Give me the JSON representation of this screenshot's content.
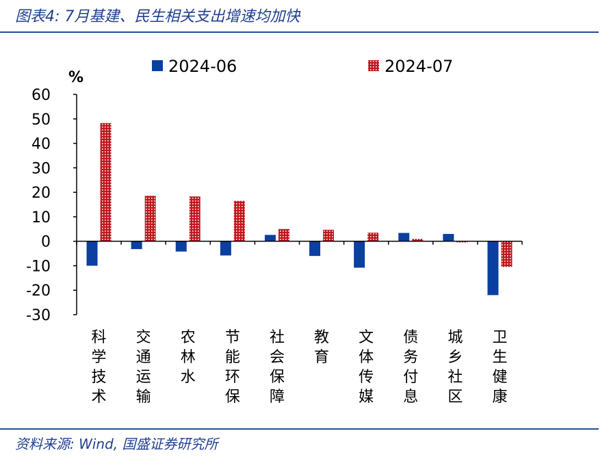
{
  "title": "图表4: 7月基建、民生相关支出增速均加快",
  "source": "资料来源: Wind, 国盛证券研究所",
  "chart_data": {
    "type": "bar",
    "ylabel": "%",
    "ylim": [
      -30,
      60
    ],
    "yticks": [
      60,
      50,
      40,
      30,
      20,
      10,
      0,
      -10,
      -20,
      -30
    ],
    "legend_position": "top",
    "categories": [
      "科学技术",
      "交通运输",
      "农林水",
      "节能环保",
      "社会保障",
      "教育",
      "文体传媒",
      "债务付息",
      "城乡社区",
      "卫生健康"
    ],
    "series": [
      {
        "name": "2024-06",
        "color": "#0b3fa0",
        "pattern": "solid",
        "values": [
          -10,
          -3.2,
          -4.2,
          -5.8,
          2.6,
          -6.0,
          -10.8,
          3.4,
          3.0,
          -22.0
        ]
      },
      {
        "name": "2024-07",
        "color": "#c0171f",
        "pattern": "dotted",
        "values": [
          48.3,
          18.6,
          18.3,
          16.5,
          5.0,
          4.7,
          3.5,
          1.0,
          -0.5,
          -10.5
        ]
      }
    ]
  }
}
